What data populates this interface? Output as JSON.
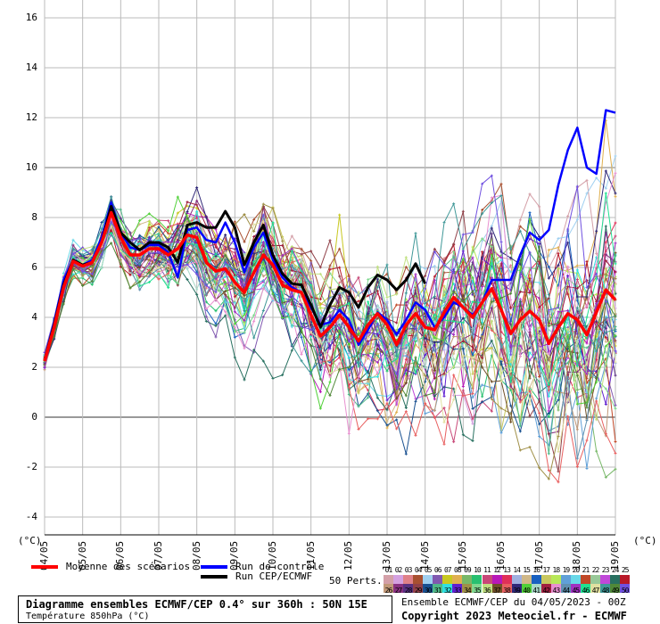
{
  "chart_data": {
    "type": "line",
    "title": "Diagramme ensembles ECMWF/CEP 0.4° sur 360h : 50N 15E",
    "subtitle": "Température 850hPa (°C)",
    "ylabel": "(°C)",
    "ylabel_right": "(°C)",
    "ylim": [
      -4,
      16
    ],
    "yticks": [
      "16",
      "14",
      "12",
      "10",
      "8",
      "6",
      "4",
      "2",
      "0",
      "-2",
      "-4"
    ],
    "ytick_values": [
      16,
      14,
      12,
      10,
      8,
      6,
      4,
      2,
      0,
      -2,
      -4
    ],
    "xticks": [
      "04/05",
      "05/05",
      "06/05",
      "07/05",
      "08/05",
      "09/05",
      "10/05",
      "11/05",
      "12/05",
      "13/05",
      "14/05",
      "15/05",
      "16/05",
      "17/05",
      "18/05",
      "19/05"
    ],
    "time_step_hours": 6,
    "grid": true,
    "series": [
      {
        "name": "Moyenne des scénarios",
        "color": "#ff0000",
        "values": [
          2.25,
          3.6,
          5.2,
          6.25,
          6.05,
          6.2,
          7.0,
          8.2,
          7.2,
          6.5,
          6.5,
          6.75,
          6.75,
          6.5,
          6.75,
          7.3,
          7.2,
          6.2,
          5.85,
          5.95,
          5.4,
          5.0,
          5.8,
          6.5,
          6.1,
          5.3,
          5.1,
          5.0,
          4.1,
          3.25,
          3.6,
          4.1,
          3.6,
          3.05,
          3.7,
          4.15,
          3.7,
          2.9,
          3.7,
          4.15,
          3.6,
          3.5,
          4.2,
          4.8,
          4.4,
          4.0,
          4.6,
          5.15,
          4.3,
          3.35,
          3.9,
          4.25,
          3.9,
          2.95,
          3.6,
          4.15,
          3.9,
          3.3,
          4.2,
          5.1,
          4.7
        ]
      },
      {
        "name": "Run de contrôle",
        "color": "#0000ff",
        "values": [
          2.3,
          3.8,
          5.5,
          6.3,
          6.1,
          6.3,
          7.2,
          8.6,
          7.4,
          6.8,
          6.7,
          6.9,
          6.9,
          6.6,
          5.6,
          7.5,
          7.6,
          7.1,
          7.0,
          7.8,
          7.0,
          5.8,
          6.8,
          7.4,
          6.3,
          5.6,
          5.2,
          5.0,
          4.4,
          3.7,
          3.8,
          4.3,
          3.9,
          2.9,
          3.5,
          4.2,
          3.9,
          3.3,
          3.9,
          4.6,
          4.3,
          3.6,
          4.0,
          4.6,
          4.4,
          4.1,
          4.6,
          5.5,
          5.5,
          5.5,
          6.5,
          7.4,
          7.1,
          7.5,
          9.3,
          10.7,
          11.6,
          10.0,
          9.75,
          12.3,
          12.2
        ]
      },
      {
        "name": "Run CEP/ECMWF",
        "color": "#000000",
        "values": [
          2.3,
          3.7,
          5.3,
          6.3,
          6.1,
          6.2,
          7.0,
          8.45,
          7.4,
          7.0,
          6.7,
          7.0,
          7.0,
          6.8,
          6.2,
          7.7,
          7.8,
          7.6,
          7.6,
          8.25,
          7.6,
          6.1,
          7.0,
          7.7,
          6.5,
          5.75,
          5.35,
          5.3,
          4.5,
          3.6,
          4.5,
          5.2,
          5.0,
          4.4,
          5.2,
          5.7,
          5.5,
          5.1,
          5.5,
          6.15,
          5.35
        ]
      }
    ]
  },
  "legend": {
    "mean_label": "Moyenne des scénarios",
    "control_label": "Run de contrôle",
    "cep_label": "Run CEP/ECMWF",
    "perts_label": "50 Perts.",
    "members_top": [
      "01",
      "02",
      "03",
      "04",
      "05",
      "06",
      "07",
      "08",
      "09",
      "10",
      "11",
      "12",
      "13",
      "14",
      "15",
      "16",
      "17",
      "18",
      "19",
      "20",
      "21",
      "22",
      "23",
      "24",
      "25"
    ],
    "members_bottom": [
      "26",
      "27",
      "28",
      "29",
      "30",
      "31",
      "32",
      "33",
      "34",
      "35",
      "36",
      "37",
      "38",
      "39",
      "40",
      "41",
      "42",
      "43",
      "44",
      "45",
      "46",
      "47",
      "48",
      "49",
      "50"
    ],
    "member_colors": [
      "#d4a0a8",
      "#d4a0e0",
      "#e08088",
      "#a85030",
      "#a0d0f0",
      "#8058b0",
      "#c8c820",
      "#e0b050",
      "#78b868",
      "#28c070",
      "#c84878",
      "#b818b8",
      "#e03058",
      "#a0b0e0",
      "#d0b888",
      "#1860c0",
      "#c8c860",
      "#b8e858",
      "#60a0d8",
      "#68d8e8",
      "#c04828",
      "#98c898",
      "#c048d8",
      "#287060",
      "#b81828",
      "#c09878",
      "#883080",
      "#583080",
      "#904048",
      "#185090",
      "#50b888",
      "#30e0e0",
      "#6020d0",
      "#a09048",
      "#80d890",
      "#c0e080",
      "#705028",
      "#e86060",
      "#302878",
      "#50d038",
      "#a8d8c8",
      "#a02040",
      "#e890d0",
      "#6090b0",
      "#a030c0",
      "#20e090",
      "#e0e0a0",
      "#409898",
      "#508838",
      "#7050e0"
    ]
  },
  "footer": {
    "title": "Diagramme ensembles ECMWF/CEP 0.4° sur 360h : 50N 15E",
    "subtitle": "Température 850hPa (°C)",
    "run_info": "Ensemble ECMWF/CEP du 04/05/2023 - 00Z",
    "copyright": "Copyright 2023 Meteociel.fr - ECMWF"
  }
}
